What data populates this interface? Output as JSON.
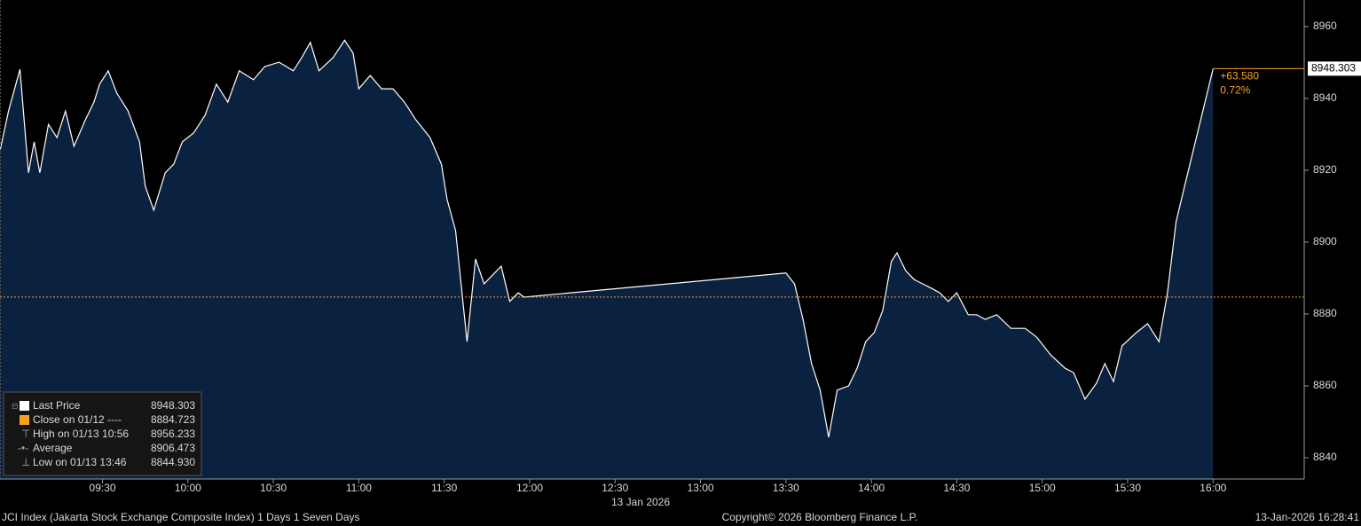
{
  "chart_data": {
    "type": "area",
    "x": [
      534,
      537,
      541,
      544,
      546,
      548,
      551,
      554,
      557,
      560,
      564,
      567,
      569,
      572,
      575,
      579,
      583,
      585,
      588,
      592,
      595,
      598,
      602,
      606,
      610,
      614,
      618,
      623,
      627,
      632,
      637,
      640,
      643,
      646,
      651,
      655,
      658,
      660,
      664,
      668,
      672,
      676,
      680,
      685,
      689,
      691,
      694,
      698,
      701,
      704,
      707,
      710,
      713,
      716,
      718,
      810,
      813,
      816,
      819,
      822,
      825,
      828,
      832,
      835,
      838,
      841,
      844,
      847,
      849,
      852,
      855,
      858,
      861,
      864,
      867,
      870,
      874,
      877,
      880,
      884,
      889,
      894,
      898,
      903,
      908,
      911,
      915,
      919,
      922,
      925,
      928,
      933,
      937,
      941,
      944,
      947,
      950,
      960
    ],
    "series": [
      {
        "name": "Last Price",
        "color": "#ffffff",
        "fill": "#0b2140",
        "values": [
          8925.4,
          8936.5,
          8948.1,
          8919.3,
          8927.9,
          8919.3,
          8932.8,
          8929.1,
          8936.5,
          8926.7,
          8934.1,
          8939.0,
          8944.0,
          8947.7,
          8941.5,
          8936.5,
          8927.9,
          8915.6,
          8908.9,
          8919.3,
          8921.7,
          8927.9,
          8930.4,
          8935.3,
          8944.0,
          8939.0,
          8947.7,
          8945.2,
          8948.9,
          8950.1,
          8947.7,
          8951.4,
          8955.6,
          8947.7,
          8951.4,
          8956.2,
          8952.6,
          8942.7,
          8946.4,
          8942.7,
          8942.7,
          8939.0,
          8934.1,
          8929.1,
          8921.7,
          8911.9,
          8903.2,
          8872.3,
          8895.3,
          8888.4,
          8890.9,
          8893.3,
          8883.5,
          8885.9,
          8884.7,
          8891.4,
          8888.4,
          8878.5,
          8866.2,
          8858.8,
          8845.7,
          8858.8,
          8860.0,
          8864.9,
          8872.3,
          8874.8,
          8881.0,
          8894.6,
          8897.0,
          8892.1,
          8889.6,
          8888.4,
          8887.2,
          8885.9,
          8883.5,
          8885.9,
          8879.8,
          8879.8,
          8878.5,
          8879.8,
          8876.0,
          8876.0,
          8873.6,
          8868.6,
          8864.9,
          8863.7,
          8856.3,
          8860.7,
          8866.2,
          8861.2,
          8871.1,
          8874.8,
          8877.3,
          8872.3,
          8885.9,
          8905.7,
          8915.6,
          8948.303
        ]
      }
    ],
    "reference_lines": [
      {
        "value": 8884.723,
        "color": "#f7a21b"
      }
    ],
    "last_line_color": "#f7a21b",
    "change": "+63.580",
    "change_pct": "0.72%",
    "xlim": [
      534,
      992
    ],
    "xticks": [
      {
        "value": 570,
        "label": "09:30"
      },
      {
        "value": 600,
        "label": "10:00"
      },
      {
        "value": 630,
        "label": "10:30"
      },
      {
        "value": 660,
        "label": "11:00"
      },
      {
        "value": 690,
        "label": "11:30"
      },
      {
        "value": 720,
        "label": "12:00"
      },
      {
        "value": 750,
        "label": "12:30"
      },
      {
        "value": 780,
        "label": "13:00"
      },
      {
        "value": 810,
        "label": "13:30"
      },
      {
        "value": 840,
        "label": "14:00"
      },
      {
        "value": 870,
        "label": "14:30"
      },
      {
        "value": 900,
        "label": "15:00"
      },
      {
        "value": 930,
        "label": "15:30"
      },
      {
        "value": 960,
        "label": "16:00"
      }
    ],
    "x_date": "13 Jan 2026",
    "ylim": [
      8834.07,
      8967.41
    ],
    "yticks": [
      8840,
      8860,
      8880,
      8900,
      8920,
      8940,
      8960
    ],
    "grid": false,
    "legend": {
      "close": "Close on 01/12 ----",
      "stats": [
        {
          "label": "High on 01/13 10:56",
          "value": "8956.233"
        },
        {
          "label": "Average",
          "value": "8906.473"
        },
        {
          "label": "Low on 01/13 13:46",
          "value": "8844.930"
        }
      ]
    }
  },
  "footer": {
    "left": "JCI Index (Jakarta Stock Exchange Composite Index) 1 Days 1 Seven Days",
    "center": "Copyright© 2026 Bloomberg Finance L.P.",
    "right": "13-Jan-2026 16:28:41"
  }
}
